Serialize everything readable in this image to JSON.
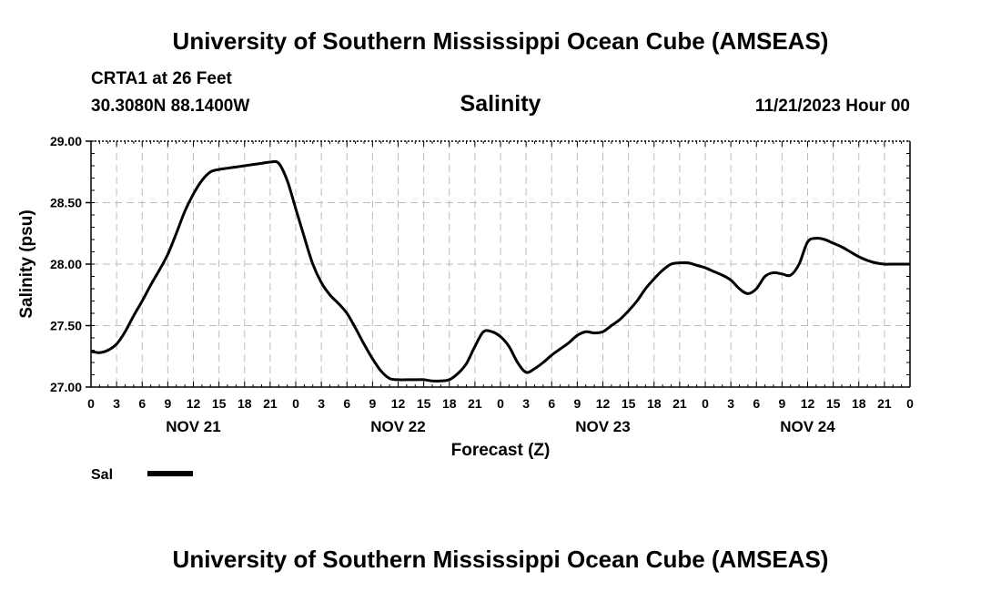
{
  "header": {
    "title": "University of Southern Mississippi Ocean Cube (AMSEAS)",
    "station": "CRTA1 at 26 Feet",
    "coords": "30.3080N  88.1400W",
    "datetime": "11/21/2023 Hour 00"
  },
  "footer": {
    "title": "University of Southern Mississippi Ocean Cube (AMSEAS)"
  },
  "chart_data": {
    "type": "line",
    "title": "Salinity",
    "xlabel": "Forecast (Z)",
    "ylabel": "Salinity (psu)",
    "ylim": [
      27.0,
      29.0
    ],
    "yticks": [
      "27.00",
      "27.50",
      "28.00",
      "28.50",
      "29.00"
    ],
    "xlim_hours": [
      0,
      96
    ],
    "xtick_labels": [
      "0",
      "3",
      "6",
      "9",
      "12",
      "15",
      "18",
      "21",
      "0",
      "3",
      "6",
      "9",
      "12",
      "15",
      "18",
      "21",
      "0",
      "3",
      "6",
      "9",
      "12",
      "15",
      "18",
      "21",
      "0",
      "3",
      "6",
      "9",
      "12",
      "15",
      "18",
      "21",
      "0"
    ],
    "day_labels": [
      "NOV 21",
      "NOV 22",
      "NOV 23",
      "NOV 24"
    ],
    "grid": true,
    "legend": {
      "position": "bottom-left",
      "entries": [
        "Sal"
      ]
    },
    "series": [
      {
        "name": "Sal",
        "x": [
          0,
          1,
          2,
          3,
          4,
          5,
          6,
          7,
          8,
          9,
          10,
          11,
          12,
          13,
          14,
          15,
          16,
          17,
          18,
          19,
          20,
          21,
          22,
          23,
          24,
          25,
          26,
          27,
          28,
          29,
          30,
          31,
          32,
          33,
          34,
          35,
          36,
          37,
          38,
          39,
          40,
          41,
          42,
          43,
          44,
          45,
          46,
          47,
          48,
          49,
          50,
          51,
          52,
          53,
          54,
          55,
          56,
          57,
          58,
          59,
          60,
          61,
          62,
          63,
          64,
          65,
          66,
          67,
          68,
          69,
          70,
          71,
          72,
          73,
          74,
          75,
          76,
          77,
          78,
          79,
          80,
          81,
          82,
          83,
          84,
          85,
          86,
          87,
          88,
          89,
          90,
          91,
          92,
          93,
          94,
          95,
          96
        ],
        "values": [
          27.29,
          27.28,
          27.3,
          27.35,
          27.45,
          27.58,
          27.7,
          27.83,
          27.95,
          28.08,
          28.25,
          28.43,
          28.57,
          28.68,
          28.75,
          28.77,
          28.78,
          28.79,
          28.8,
          28.81,
          28.82,
          28.83,
          28.82,
          28.68,
          28.45,
          28.22,
          28.0,
          27.85,
          27.75,
          27.68,
          27.6,
          27.48,
          27.35,
          27.23,
          27.13,
          27.07,
          27.06,
          27.06,
          27.06,
          27.06,
          27.05,
          27.05,
          27.06,
          27.11,
          27.19,
          27.33,
          27.45,
          27.45,
          27.41,
          27.33,
          27.2,
          27.12,
          27.15,
          27.2,
          27.26,
          27.31,
          27.36,
          27.42,
          27.45,
          27.44,
          27.45,
          27.5,
          27.55,
          27.62,
          27.7,
          27.8,
          27.88,
          27.95,
          28.0,
          28.01,
          28.01,
          27.99,
          27.97,
          27.94,
          27.91,
          27.87,
          27.8,
          27.76,
          27.8,
          27.9,
          27.93,
          27.92,
          27.91,
          28.0,
          28.18,
          28.21,
          28.2,
          28.17,
          28.14,
          28.1,
          28.06,
          28.03,
          28.01,
          28.0,
          28.0,
          28.0,
          28.0
        ]
      }
    ]
  }
}
